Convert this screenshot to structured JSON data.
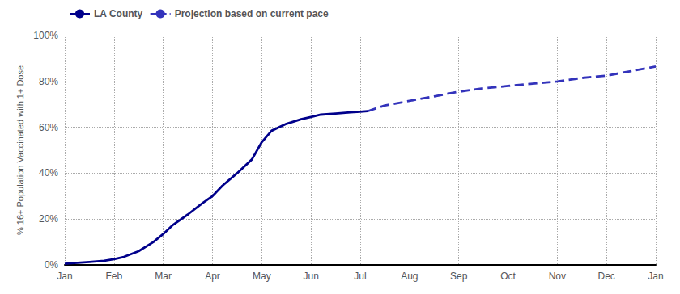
{
  "chart_data": {
    "type": "line",
    "ylabel": "% 16+ Population Vaccinated with 1+ Dose",
    "xlim": [
      0,
      12
    ],
    "xticks": [
      {
        "value": 0,
        "label": "Jan"
      },
      {
        "value": 1,
        "label": "Feb"
      },
      {
        "value": 2,
        "label": "Mar"
      },
      {
        "value": 3,
        "label": "Apr"
      },
      {
        "value": 4,
        "label": "May"
      },
      {
        "value": 5,
        "label": "Jun"
      },
      {
        "value": 6,
        "label": "Jul"
      },
      {
        "value": 7,
        "label": "Aug"
      },
      {
        "value": 8,
        "label": "Sep"
      },
      {
        "value": 9,
        "label": "Oct"
      },
      {
        "value": 10,
        "label": "Nov"
      },
      {
        "value": 11,
        "label": "Dec"
      },
      {
        "value": 12,
        "label": "Jan"
      }
    ],
    "ylim": [
      0,
      1.0
    ],
    "yticks": [
      {
        "value": 0,
        "label": "0%"
      },
      {
        "value": 0.2,
        "label": "20%"
      },
      {
        "value": 0.4,
        "label": "40%"
      },
      {
        "value": 0.6,
        "label": "60%"
      },
      {
        "value": 0.8,
        "label": "80%"
      },
      {
        "value": 1.0,
        "label": "100%"
      }
    ],
    "grid": true,
    "legend": "upper left",
    "series": [
      {
        "name": "LA County",
        "color": "#00008B",
        "line_style": "solid",
        "x": [
          0,
          0.2,
          0.5,
          0.8,
          1.0,
          1.2,
          1.5,
          1.8,
          2.0,
          2.2,
          2.5,
          2.8,
          3.0,
          3.2,
          3.5,
          3.8,
          4.0,
          4.2,
          4.5,
          4.8,
          5.0,
          5.2,
          5.5,
          5.8,
          6.0,
          6.15
        ],
        "values": [
          0.005,
          0.008,
          0.013,
          0.018,
          0.025,
          0.035,
          0.06,
          0.1,
          0.135,
          0.175,
          0.22,
          0.27,
          0.3,
          0.345,
          0.4,
          0.46,
          0.535,
          0.585,
          0.615,
          0.635,
          0.645,
          0.655,
          0.66,
          0.665,
          0.668,
          0.67
        ]
      },
      {
        "name": "Projection based on current pace",
        "color": "#3333BB",
        "line_style": "dashed",
        "x": [
          6.15,
          6.5,
          7.0,
          7.5,
          8.0,
          8.5,
          9.0,
          9.5,
          10.0,
          10.5,
          11.0,
          11.5,
          12.0
        ],
        "values": [
          0.67,
          0.695,
          0.715,
          0.735,
          0.755,
          0.77,
          0.78,
          0.79,
          0.8,
          0.815,
          0.825,
          0.845,
          0.865
        ]
      }
    ]
  }
}
